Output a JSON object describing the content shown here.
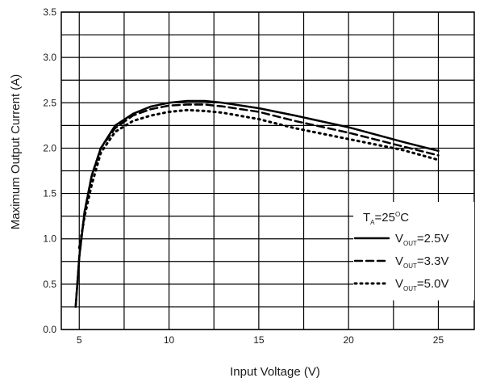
{
  "chart_data": {
    "type": "line",
    "xlabel": "Input Voltage (V)",
    "ylabel": "Maximum Output Current (A)",
    "xlim": [
      4,
      27
    ],
    "ylim": [
      0,
      3.5
    ],
    "x_ticks": [
      5,
      10,
      15,
      20,
      25
    ],
    "x_tick_labels": [
      "5",
      "10",
      "15",
      "20",
      "25"
    ],
    "y_ticks": [
      0,
      0.5,
      1.0,
      1.5,
      2.0,
      2.5,
      3.0,
      3.5
    ],
    "y_tick_labels": [
      "0.0",
      "0.5",
      "1.0",
      "1.5",
      "2.0",
      "2.5",
      "3.0",
      "3.5"
    ],
    "grid": true,
    "legend": {
      "placement": "bottom-right",
      "header": {
        "main": "T",
        "sub": "A",
        "rest": "=25",
        "sup": "O",
        "tail": "C"
      },
      "entries": [
        {
          "main": "V",
          "sub": "OUT",
          "rest": "=2.5V",
          "style": "solid"
        },
        {
          "main": "V",
          "sub": "OUT",
          "rest": "=3.3V",
          "style": "dashed"
        },
        {
          "main": "V",
          "sub": "OUT",
          "rest": "=5.0V",
          "style": "dotted"
        }
      ]
    },
    "series": [
      {
        "style": "solid",
        "color": "#000000",
        "x": [
          4.8,
          5.0,
          5.3,
          5.7,
          6.2,
          7.0,
          8.0,
          9.0,
          10.0,
          11.0,
          12.0,
          13.0,
          15.0,
          17.0,
          20.0,
          23.0,
          25.0
        ],
        "y": [
          0.25,
          0.8,
          1.3,
          1.7,
          2.0,
          2.25,
          2.38,
          2.46,
          2.5,
          2.52,
          2.52,
          2.5,
          2.44,
          2.36,
          2.23,
          2.07,
          1.97
        ]
      },
      {
        "style": "dashed",
        "color": "#000000",
        "x": [
          4.8,
          5.0,
          5.3,
          5.7,
          6.2,
          7.0,
          8.0,
          9.0,
          10.0,
          11.0,
          12.0,
          13.0,
          15.0,
          17.0,
          20.0,
          23.0,
          25.0
        ],
        "y": [
          0.25,
          0.8,
          1.3,
          1.7,
          2.0,
          2.22,
          2.36,
          2.43,
          2.47,
          2.48,
          2.48,
          2.46,
          2.4,
          2.3,
          2.17,
          2.02,
          1.92
        ]
      },
      {
        "style": "dotted",
        "color": "#000000",
        "x": [
          5.0,
          5.3,
          5.7,
          6.2,
          7.0,
          8.0,
          9.0,
          10.0,
          11.0,
          12.0,
          13.0,
          15.0,
          17.0,
          20.0,
          23.0,
          25.0
        ],
        "y": [
          0.9,
          1.25,
          1.6,
          1.95,
          2.18,
          2.3,
          2.36,
          2.4,
          2.42,
          2.41,
          2.39,
          2.32,
          2.22,
          2.1,
          1.98,
          1.87
        ]
      }
    ]
  }
}
